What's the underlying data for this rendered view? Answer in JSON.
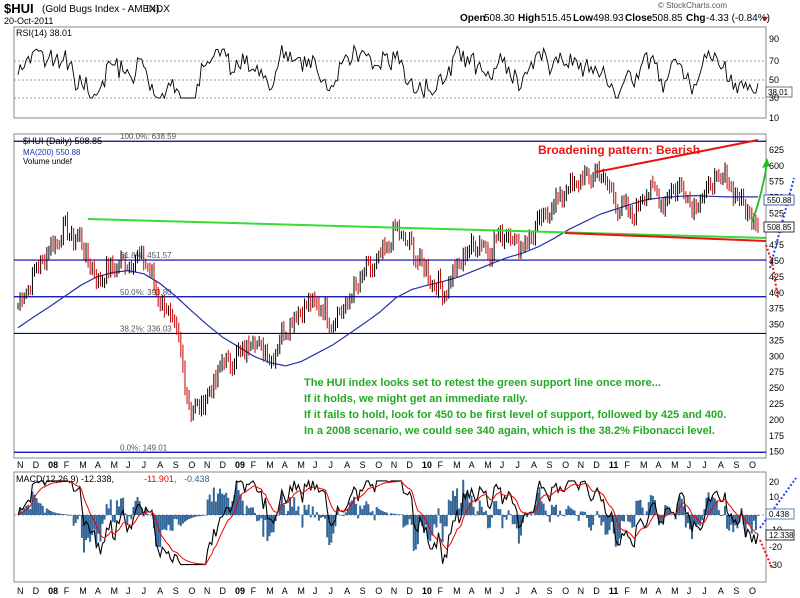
{
  "header": {
    "symbol": "$HUI",
    "name": "(Gold Bugs Index - AMEX)",
    "exchange": "INDX",
    "date": "20-Oct-2011",
    "open_label": "Open",
    "open": "508.30",
    "high_label": "High",
    "high": "515.45",
    "low_label": "Low",
    "low": "498.93",
    "close_label": "Close",
    "close": "508.85",
    "chg_label": "Chg",
    "chg": "-4.33 (-0.84%)",
    "credit": "© StockCharts.com"
  },
  "rsi_panel": {
    "label": "RSI(14) 38.01",
    "ticks": [
      "90",
      "70",
      "50",
      "30",
      "10"
    ],
    "current": "38.01"
  },
  "price_panel": {
    "legend_main": "$HUI (Daily) 508.85",
    "legend_ma": "MA(200) 550.88",
    "legend_vol": "Volume undef",
    "ticks": [
      "625",
      "600",
      "575",
      "550",
      "525",
      "500",
      "475",
      "450",
      "425",
      "400",
      "375",
      "350",
      "325",
      "300",
      "275",
      "250",
      "225",
      "200",
      "175",
      "150"
    ],
    "ma_badge": "550.88",
    "close_badge": "508.85",
    "fib_levels": [
      {
        "label": "100.0%: 638.59",
        "value": 638.59
      },
      {
        "label": "61.8%: 451.57",
        "value": 451.57
      },
      {
        "label": "50.0%: 393.80",
        "value": 393.8
      },
      {
        "label": "38.2%: 336.03",
        "value": 336.03
      },
      {
        "label": "0.0%: 149.01",
        "value": 149.01
      }
    ],
    "pattern_label": "Broadening pattern: Bearish",
    "annotation_lines": [
      "The HUI index looks set to retest the green support line once more...",
      "If it holds, we might get an immediate rally.",
      "If it fails to hold, look for 450 to be first level of support, followed by 425 and 400.",
      "In a 2008 scenario, we could see 340 again, which is the 38.2% Fibonacci level."
    ]
  },
  "macd_panel": {
    "label": "MACD(12,26,9) -12.338,",
    "signal": "-11.901,",
    "hist": "-0.438",
    "ticks": [
      "20",
      "10",
      "0",
      "-10",
      "-20",
      "-30"
    ],
    "badge_hist": "0.438",
    "badge_macd": "12.338"
  },
  "x_axis": {
    "labels": [
      "N",
      "D",
      "08",
      "F",
      "M",
      "A",
      "M",
      "J",
      "J",
      "A",
      "S",
      "O",
      "N",
      "D",
      "09",
      "F",
      "M",
      "A",
      "M",
      "J",
      "J",
      "A",
      "S",
      "O",
      "N",
      "D",
      "10",
      "F",
      "M",
      "A",
      "M",
      "J",
      "J",
      "A",
      "S",
      "O",
      "N",
      "D",
      "11",
      "F",
      "M",
      "A",
      "M",
      "J",
      "J",
      "A",
      "S",
      "O"
    ]
  },
  "colors": {
    "price_up": "#000000",
    "price_down": "#cc0000",
    "ma": "#2233aa",
    "fib": "#0000aa",
    "support": "#33dd33",
    "broadening": "#ee1111",
    "annotation": "#22aa22",
    "macd_hist": "#336699",
    "macd_line": "#000000",
    "signal_line": "#ee0000"
  },
  "chart_data": {
    "type": "line",
    "title": "$HUI (Gold Bugs Index - AMEX) INDX",
    "x": [
      "2007-11",
      "2007-12",
      "2008-01",
      "2008-02",
      "2008-03",
      "2008-04",
      "2008-05",
      "2008-06",
      "2008-07",
      "2008-08",
      "2008-09",
      "2008-10",
      "2008-11",
      "2008-12",
      "2009-01",
      "2009-02",
      "2009-03",
      "2009-04",
      "2009-05",
      "2009-06",
      "2009-07",
      "2009-08",
      "2009-09",
      "2009-10",
      "2009-11",
      "2009-12",
      "2010-01",
      "2010-02",
      "2010-03",
      "2010-04",
      "2010-05",
      "2010-06",
      "2010-07",
      "2010-08",
      "2010-09",
      "2010-10",
      "2010-11",
      "2010-12",
      "2011-01",
      "2011-02",
      "2011-03",
      "2011-04",
      "2011-05",
      "2011-06",
      "2011-07",
      "2011-08",
      "2011-09",
      "2011-10"
    ],
    "series": [
      {
        "name": "$HUI (Daily)",
        "values": [
          380,
          430,
          470,
          500,
          480,
          420,
          440,
          450,
          455,
          390,
          345,
          210,
          235,
          290,
          300,
          330,
          295,
          345,
          375,
          385,
          355,
          385,
          430,
          450,
          500,
          470,
          430,
          400,
          445,
          480,
          470,
          500,
          470,
          505,
          540,
          565,
          580,
          590,
          540,
          520,
          565,
          545,
          570,
          535,
          570,
          580,
          540,
          508
        ]
      },
      {
        "name": "MA(200)",
        "values": [
          345,
          362,
          378,
          395,
          412,
          425,
          432,
          435,
          430,
          415,
          395,
          372,
          350,
          330,
          315,
          300,
          290,
          285,
          292,
          305,
          318,
          335,
          352,
          370,
          392,
          405,
          412,
          418,
          425,
          435,
          445,
          455,
          462,
          472,
          485,
          500,
          512,
          524,
          532,
          540,
          547,
          550,
          552,
          553,
          552,
          551,
          551,
          551
        ]
      }
    ],
    "ylim": [
      140,
      650
    ],
    "fibonacci": [
      638.59,
      451.57,
      393.8,
      336.03,
      149.01
    ],
    "rsi": {
      "name": "RSI(14)",
      "current": 38.01,
      "ylim": [
        0,
        100
      ]
    },
    "macd": {
      "name": "MACD(12,26,9)",
      "macd": -12.338,
      "signal": -11.901,
      "histogram": -0.438,
      "ylim": [
        -35,
        25
      ]
    }
  }
}
